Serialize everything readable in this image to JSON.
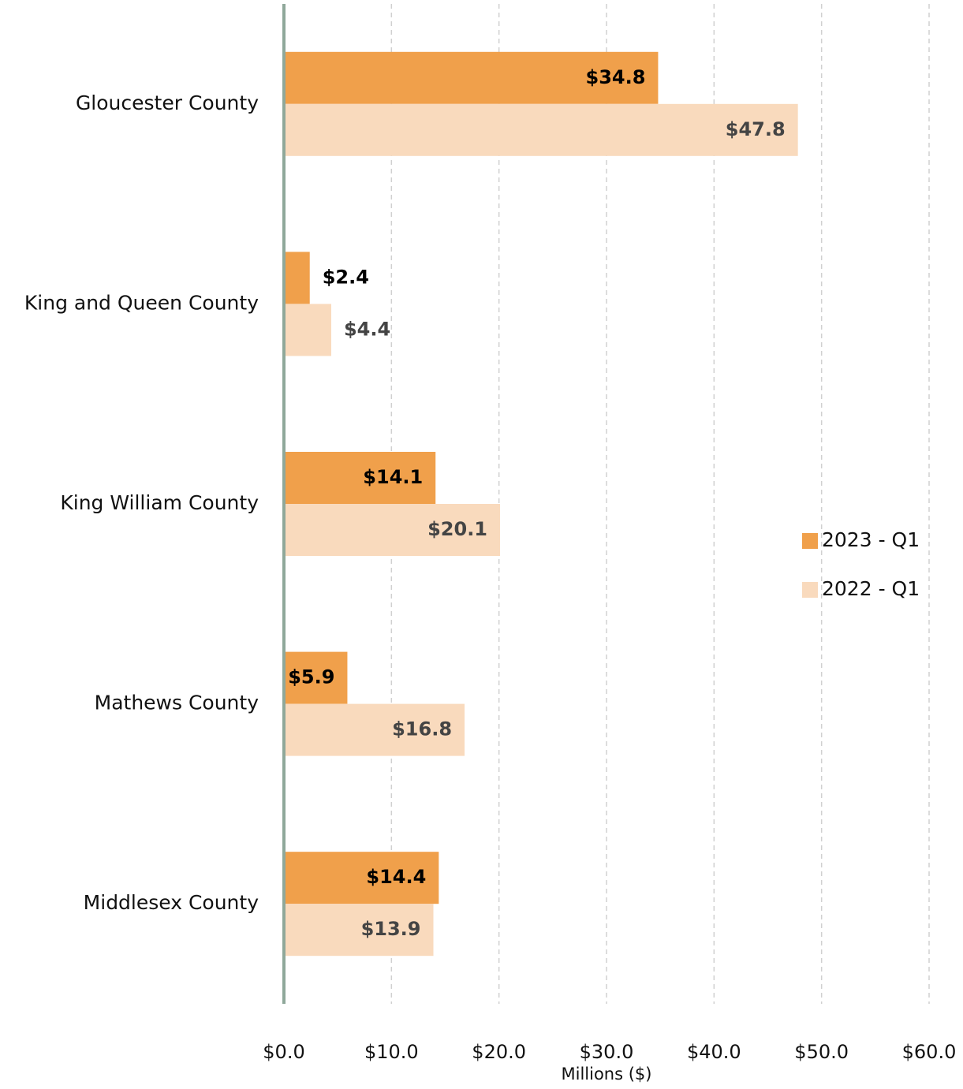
{
  "chart_data": {
    "type": "bar",
    "orientation": "horizontal",
    "categories": [
      "Gloucester County",
      "King and Queen County",
      "King William County",
      "Mathews County",
      "Middlesex County"
    ],
    "series": [
      {
        "name": "2023 - Q1",
        "color": "#f0a04b",
        "values": [
          34.8,
          2.4,
          14.1,
          5.9,
          14.4
        ],
        "value_labels": [
          "$34.8",
          "$2.4",
          "$14.1",
          "$5.9",
          "$14.4"
        ]
      },
      {
        "name": "2022 - Q1",
        "color": "#f9dabd",
        "values": [
          47.8,
          4.4,
          20.1,
          16.8,
          13.9
        ],
        "value_labels": [
          "$47.8",
          "$4.4",
          "$20.1",
          "$16.8",
          "$13.9"
        ]
      }
    ],
    "xlim": [
      0,
      60
    ],
    "xticks": [
      {
        "value": 0,
        "label": "$0.0"
      },
      {
        "value": 10,
        "label": "$10.0"
      },
      {
        "value": 20,
        "label": "$20.0"
      },
      {
        "value": 30,
        "label": "$30.0"
      },
      {
        "value": 40,
        "label": "$40.0"
      },
      {
        "value": 50,
        "label": "$50.0"
      },
      {
        "value": 60,
        "label": "$60.0"
      }
    ],
    "xlabel": "Millions ($)",
    "grid": true,
    "legend": "right"
  }
}
